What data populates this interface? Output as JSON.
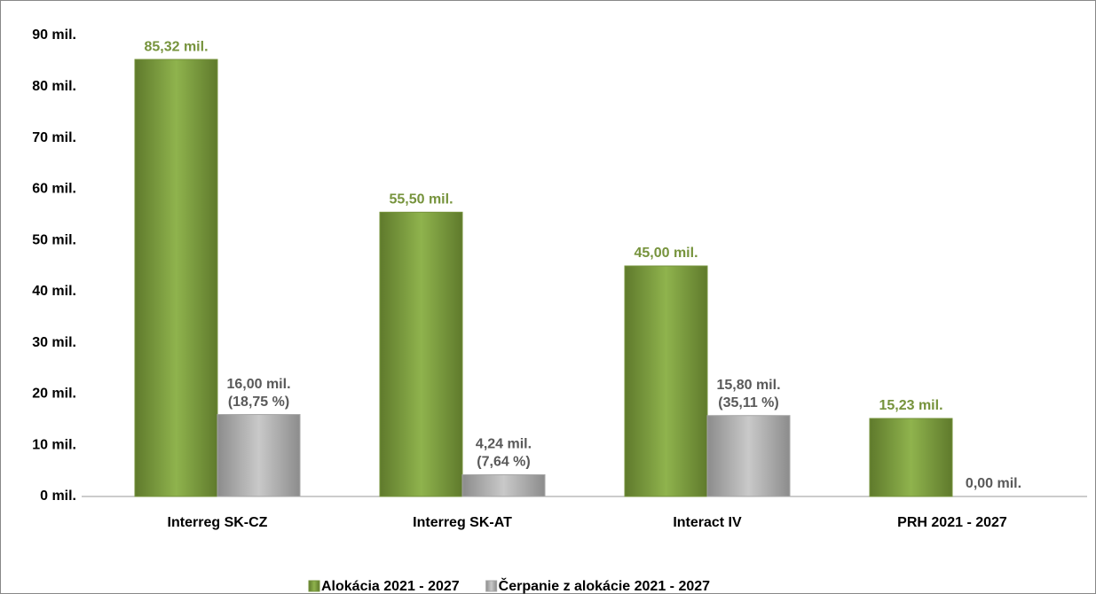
{
  "chart_data": {
    "type": "bar",
    "categories": [
      "Interreg SK-CZ",
      "Interreg SK-AT",
      "Interact IV",
      "PRH 2021 - 2027"
    ],
    "series": [
      {
        "name": "Alokácia 2021 - 2027",
        "color": "#76933c",
        "label_color": "#76933c",
        "values": [
          85.32,
          55.5,
          45.0,
          15.23
        ],
        "value_labels": [
          [
            "85,32 mil."
          ],
          [
            "55,50 mil."
          ],
          [
            "45,00 mil."
          ],
          [
            "15,23 mil."
          ]
        ]
      },
      {
        "name": "Čerpanie z alokácie 2021 - 2027",
        "color": "#a6a6a6",
        "label_color": "#595959",
        "values": [
          16.0,
          4.24,
          15.8,
          0.0
        ],
        "value_labels": [
          [
            "16,00 mil.",
            "(18,75 %)"
          ],
          [
            "4,24 mil.",
            "(7,64 %)"
          ],
          [
            "15,80 mil.",
            "(35,11 %)"
          ],
          [
            "0,00 mil."
          ]
        ]
      }
    ],
    "ylim": [
      0,
      90
    ],
    "yticks": [
      {
        "value": 0,
        "label": "0 mil."
      },
      {
        "value": 10,
        "label": "10 mil."
      },
      {
        "value": 20,
        "label": "20 mil."
      },
      {
        "value": 30,
        "label": "30 mil."
      },
      {
        "value": 40,
        "label": "40 mil."
      },
      {
        "value": 50,
        "label": "50 mil."
      },
      {
        "value": 60,
        "label": "60 mil."
      },
      {
        "value": 70,
        "label": "70 mil."
      },
      {
        "value": 80,
        "label": "80 mil."
      },
      {
        "value": 90,
        "label": "90 mil."
      }
    ],
    "grid": false,
    "legend": "bottom"
  }
}
